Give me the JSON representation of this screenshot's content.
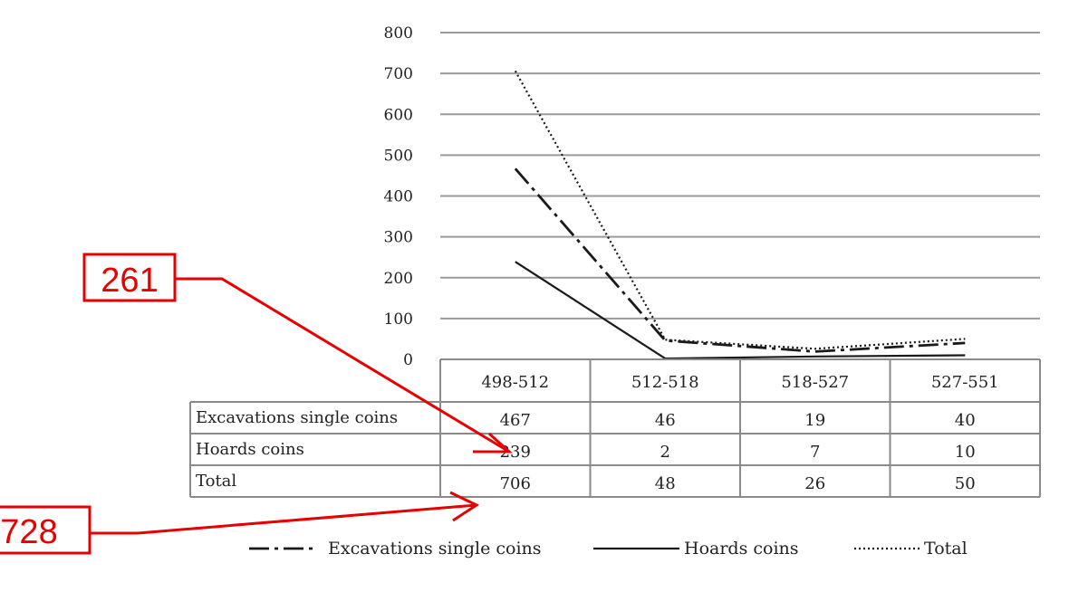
{
  "chart_data": {
    "type": "line",
    "categories": [
      "498-512",
      "512-518",
      "518-527",
      "527-551"
    ],
    "series": [
      {
        "name": "Excavations single coins",
        "values": [
          467,
          46,
          19,
          40
        ],
        "style": "dashdot",
        "color": "#1a1a1a"
      },
      {
        "name": "Hoards coins",
        "values": [
          239,
          2,
          7,
          10
        ],
        "style": "solid",
        "color": "#1a1a1a"
      },
      {
        "name": "Total",
        "values": [
          706,
          48,
          26,
          50
        ],
        "style": "dotted",
        "color": "#1a1a1a"
      }
    ],
    "yticks": [
      "0",
      "100",
      "200",
      "300",
      "400",
      "500",
      "600",
      "700",
      "800"
    ],
    "ylim": [
      0,
      800
    ],
    "grid": true,
    "data_table": true,
    "legend_position": "bottom",
    "annotations": [
      {
        "text": "261",
        "color": "#e60000",
        "target": "Hoards coins, 498-512"
      },
      {
        "text": "728",
        "color": "#e60000",
        "target": "Total, 498-512"
      }
    ]
  }
}
